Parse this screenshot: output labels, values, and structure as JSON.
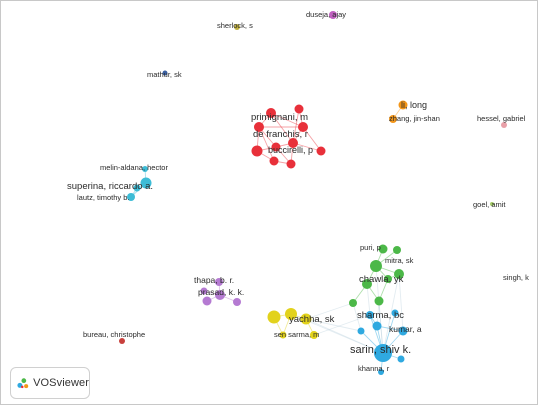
{
  "app": {
    "name": "VOSviewer"
  },
  "network": {
    "clusters": {
      "red": "#e8303a",
      "blue": "#2fa9e0",
      "cyan": "#3dbcd6",
      "green": "#4cb848",
      "yellow": "#e2d21c",
      "purple": "#b57ad2",
      "orange": "#f39619",
      "darkred": "#c8403c",
      "pink": "#e8a0a8",
      "lightgreen": "#a6cc6a",
      "violet": "#c060c0",
      "darkblue": "#3a5fa0",
      "olive": "#c0b040"
    },
    "labels": {
      "sherlock": "sherlock, s",
      "duseja": "duseja, ajay",
      "mathur": "mathur, sk",
      "primignani": "primignani, m",
      "defranchis": "de franchis, r",
      "buccirelli": "buccirelli, p",
      "lilong": "li, long",
      "zhang": "zhang, jin-shan",
      "hessel": "hessel, gabriel",
      "melinaldana": "melin-aldana, hector",
      "superina": "superina, riccardo a.",
      "lautz": "lautz, timothy b.",
      "goel": "goel, amit",
      "puri": "puri, p",
      "mitra": "mitra, sk",
      "chawla": "chawla, yk",
      "singh": "singh, k",
      "thapa": "thapa, b. r.",
      "prasad": "prasad, k. k.",
      "sharma": "sharma, bc",
      "yachha": "yachha, sk",
      "kumar": "kumar, a",
      "bureau": "bureau, christophe",
      "sensarma": "sen sarma, m",
      "sarin": "sarin, shiv k.",
      "khanna": "khanna, r"
    }
  }
}
